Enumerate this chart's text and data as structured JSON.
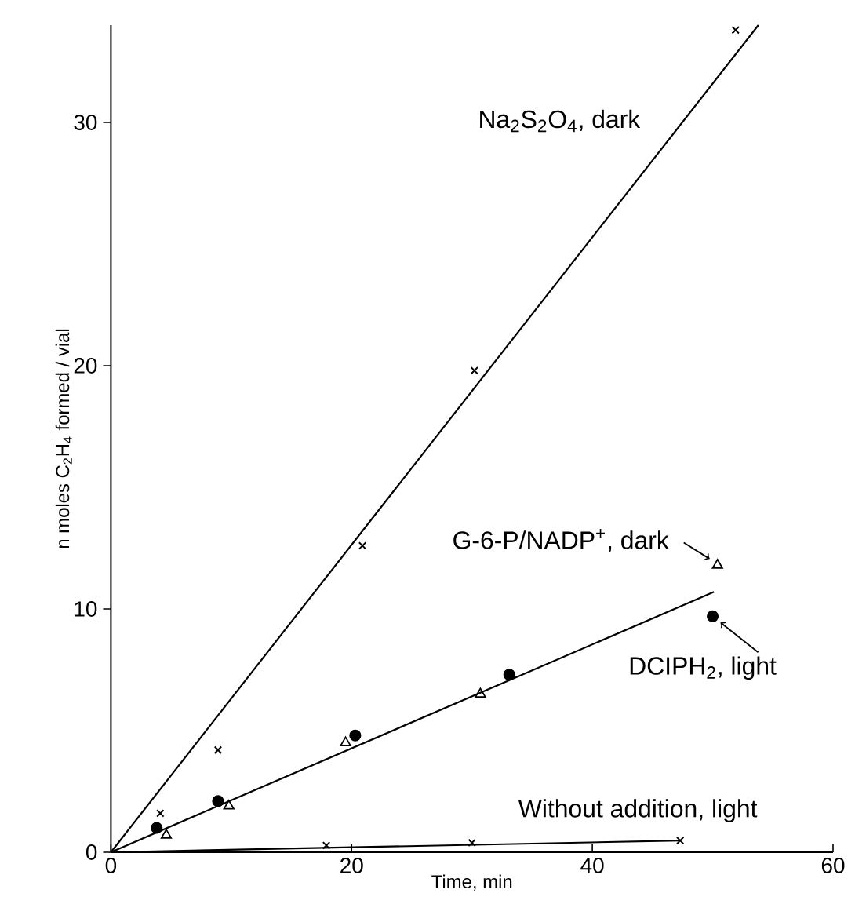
{
  "chart_data": {
    "type": "scatter",
    "xlabel": "Time, min",
    "ylabel": "n moles C$_{2}$H$_{4}$ formed / vial",
    "xlim": [
      0,
      60
    ],
    "ylim": [
      0,
      34
    ],
    "xticks": [
      0,
      20,
      40,
      60
    ],
    "yticks": [
      0,
      10,
      20,
      30
    ],
    "series": [
      {
        "name": "Na$_{2}$S$_{2}$O$_{4}$, dark",
        "type": "line",
        "color": "#000000",
        "x": [
          0,
          53.8
        ],
        "values": [
          0,
          34.0
        ]
      },
      {
        "type": "line",
        "color": "#000000",
        "x": [
          0,
          50.1
        ],
        "values": [
          0,
          10.7
        ]
      },
      {
        "type": "line",
        "color": "#000000",
        "x": [
          0,
          47.3
        ],
        "values": [
          0,
          0.48
        ]
      },
      {
        "marker": "cross",
        "color": "#000000",
        "x": [
          4.1,
          8.9,
          20.9,
          30.2,
          51.9
        ],
        "values": [
          1.6,
          4.2,
          12.6,
          19.8,
          33.8
        ]
      },
      {
        "name": "G-6-P/NADP$^{+}$, dark",
        "marker": "triangle",
        "color": "#000000",
        "x": [
          4.6,
          9.8,
          19.5,
          30.7,
          50.4
        ],
        "values": [
          0.7,
          1.9,
          4.5,
          6.5,
          11.8
        ]
      },
      {
        "name": "DCIPH$_{2}$, light",
        "marker": "circle",
        "color": "#000000",
        "x": [
          3.8,
          8.9,
          20.3,
          33.1,
          50.0
        ],
        "values": [
          1.0,
          2.1,
          4.8,
          7.3,
          9.7
        ]
      },
      {
        "name": "Without addition, light",
        "marker": "cross",
        "color": "#000000",
        "x": [
          17.9,
          30.0,
          47.3
        ],
        "values": [
          0.28,
          0.39,
          0.48
        ]
      }
    ]
  }
}
